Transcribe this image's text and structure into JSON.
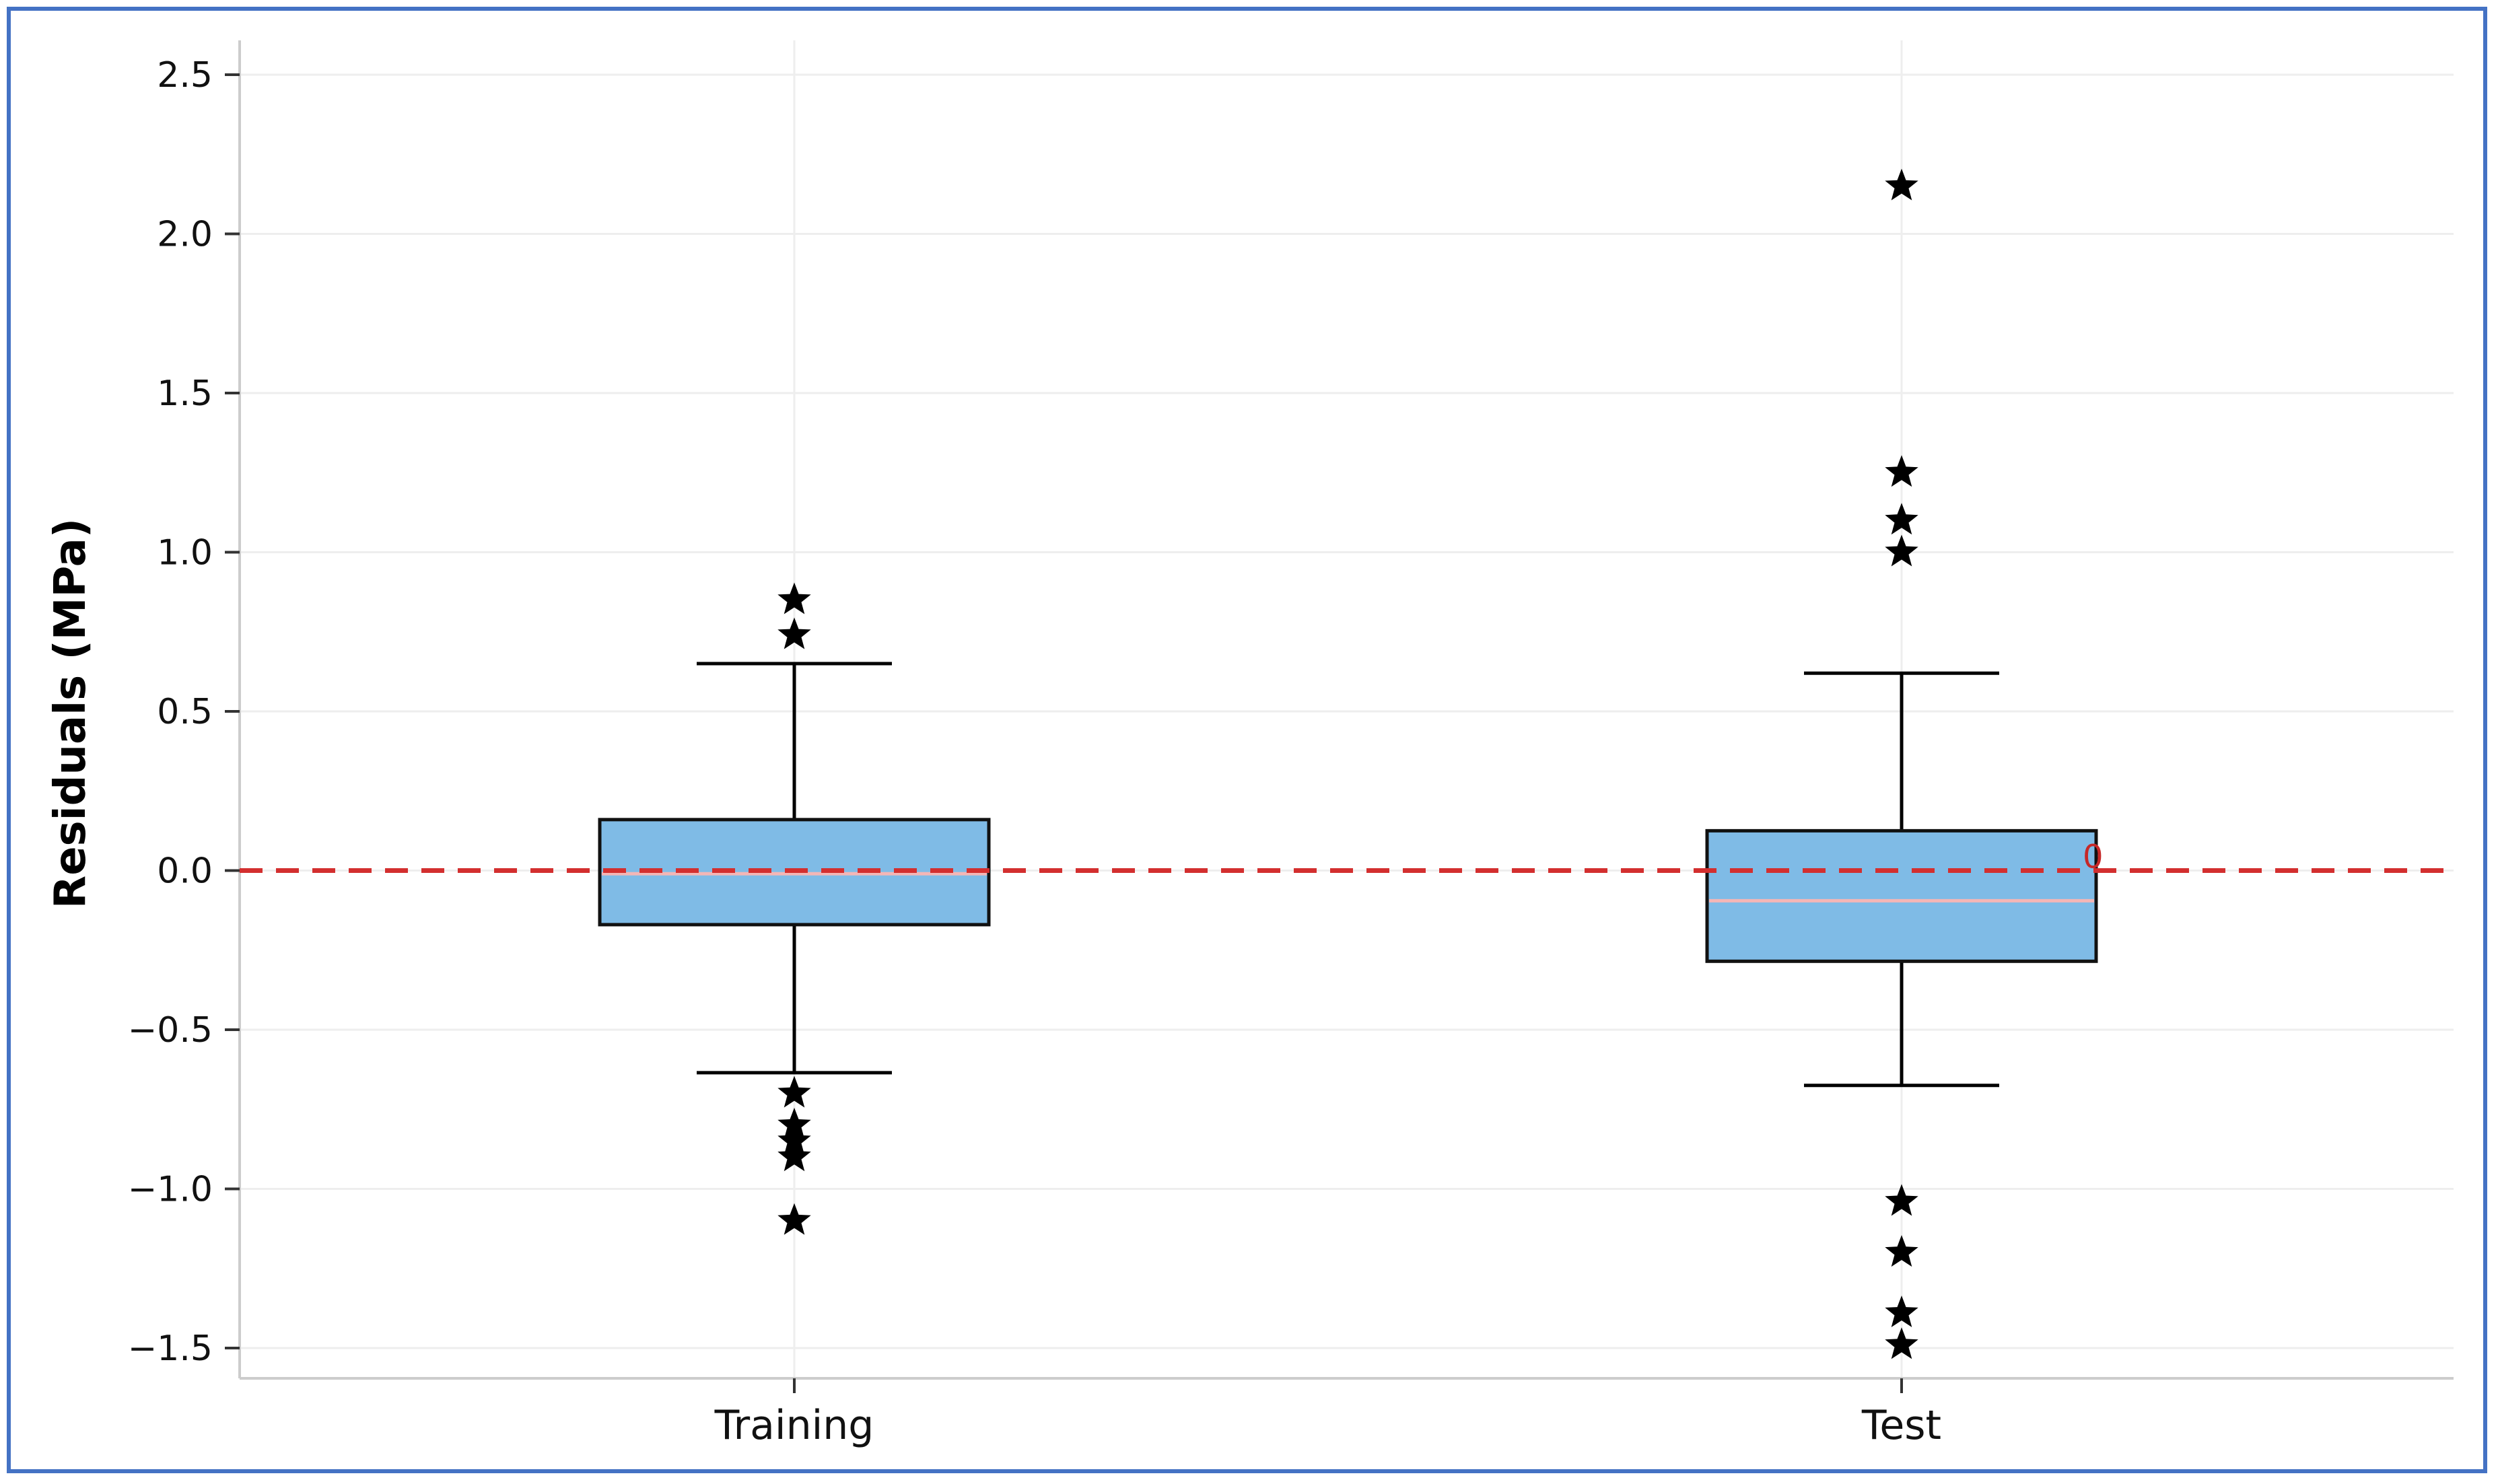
{
  "chart_data": {
    "type": "box",
    "title": "",
    "xlabel": "",
    "ylabel": "Residuals (MPa)",
    "ylim": [
      -1.6,
      2.6
    ],
    "yticks": [
      2.5,
      2.0,
      1.5,
      1.0,
      0.5,
      0.0,
      -0.5,
      -1.0,
      -1.5
    ],
    "ytick_labels": [
      "2.5",
      "2.0",
      "1.5",
      "1.0",
      "0.5",
      "0.0",
      "−0.5",
      "−1.0",
      "−1.5"
    ],
    "grid": true,
    "categories": [
      "Training",
      "Test"
    ],
    "boxes": [
      {
        "name": "Training",
        "whisker_low": -0.635,
        "q1": -0.17,
        "median": -0.01,
        "q3": 0.16,
        "whisker_high": 0.65,
        "outliers": [
          0.85,
          0.74,
          -0.7,
          -0.8,
          -0.85,
          -0.9,
          -1.1
        ]
      },
      {
        "name": "Test",
        "whisker_low": -0.675,
        "q1": -0.285,
        "median": -0.095,
        "q3": 0.125,
        "whisker_high": 0.62,
        "outliers": [
          2.15,
          1.25,
          1.1,
          1.0,
          -1.04,
          -1.2,
          -1.39,
          -1.49
        ]
      }
    ],
    "reference_line": {
      "y": 0.0,
      "style": "dashed",
      "color": "#d32f2f"
    },
    "annotation": {
      "text": "0",
      "color": "#c62828"
    },
    "colors": {
      "box_fill": "#7fbbe6",
      "box_edge": "#111111",
      "median": "#f4b6b6",
      "grid": "#eeeeee",
      "frame": "#4472c4"
    }
  }
}
